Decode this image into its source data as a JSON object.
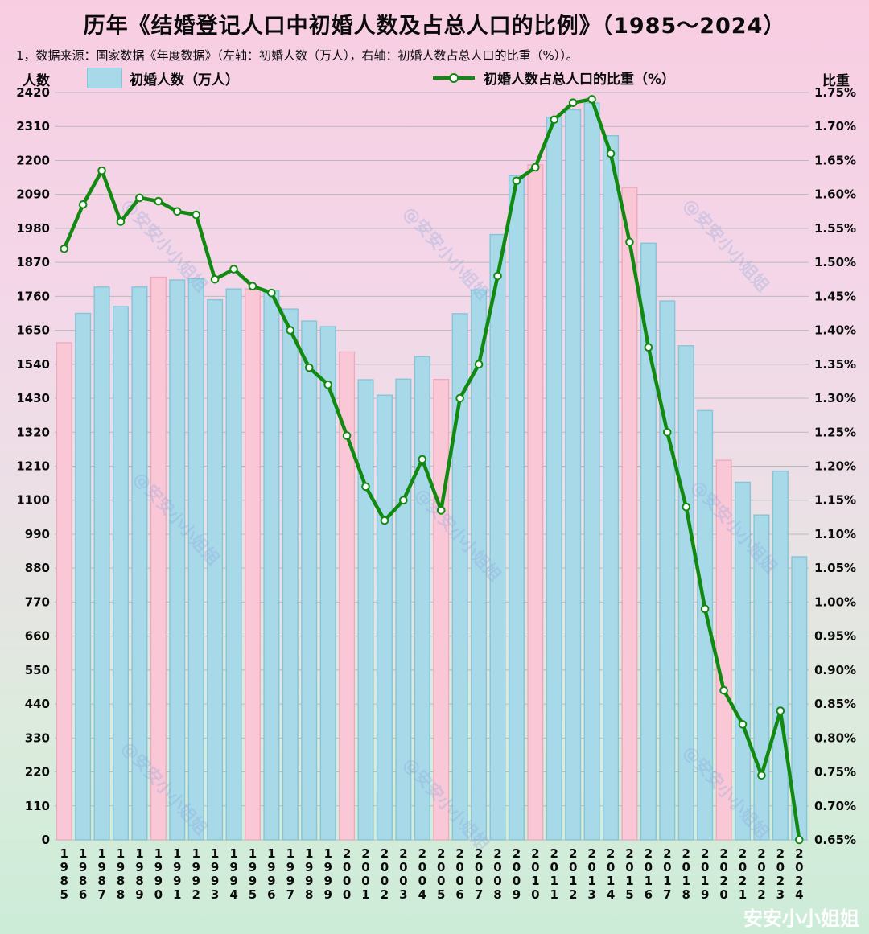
{
  "title": "历年《结婚登记人口中初婚人数及占总人口的比例》（1985～2024）",
  "subtitle": "1，数据来源：国家数据《年度数据》（左轴：初婚人数（万人），右轴：初婚人数占总人口的比重（%））。",
  "axes": {
    "left_title": "人数",
    "right_title": "比重"
  },
  "legend": {
    "bars_label": "初婚人数（万人）",
    "line_label": "初婚人数占总人口的比重（%）"
  },
  "watermark": {
    "corner": "安安小小姐姐",
    "diagonal": "@安安小小姐姐"
  },
  "colors": {
    "bar_blue_fill": "#a7d9e9",
    "bar_blue_stroke": "#86c4d8",
    "bar_pink_fill": "#f9c7d6",
    "bar_pink_stroke": "#edaabf",
    "line_green": "#128a12",
    "grid": "#b9b9bc",
    "watermark_blue": "#8ea6db"
  },
  "chart_data": {
    "type": "combo",
    "categories": [
      "1985",
      "1986",
      "1987",
      "1988",
      "1989",
      "1990",
      "1991",
      "1992",
      "1993",
      "1994",
      "1995",
      "1996",
      "1997",
      "1998",
      "1999",
      "2000",
      "2001",
      "2002",
      "2003",
      "2004",
      "2005",
      "2006",
      "2007",
      "2008",
      "2009",
      "2010",
      "2011",
      "2012",
      "2013",
      "2014",
      "2015",
      "2016",
      "2017",
      "2018",
      "2019",
      "2020",
      "2021",
      "2022",
      "2023",
      "2024"
    ],
    "series": [
      {
        "name": "初婚人数（万人）",
        "chart_type": "bar",
        "axis": "left",
        "values": [
          1610,
          1705,
          1790,
          1727,
          1790,
          1822,
          1813,
          1817,
          1749,
          1784,
          1784,
          1779,
          1719,
          1680,
          1662,
          1580,
          1490,
          1440,
          1492,
          1565,
          1491,
          1704,
          1781,
          1960,
          2151,
          2186,
          2340,
          2364,
          2386,
          2280,
          2112,
          1932,
          1745,
          1600,
          1390,
          1229,
          1158,
          1052,
          1194,
          917
        ]
      },
      {
        "name": "初婚人数占总人口的比重（%）",
        "chart_type": "line",
        "axis": "right",
        "values": [
          1.52,
          1.585,
          1.635,
          1.56,
          1.595,
          1.59,
          1.575,
          1.57,
          1.475,
          1.49,
          1.465,
          1.455,
          1.4,
          1.345,
          1.32,
          1.245,
          1.17,
          1.12,
          1.15,
          1.21,
          1.135,
          1.3,
          1.35,
          1.48,
          1.62,
          1.64,
          1.71,
          1.735,
          1.74,
          1.66,
          1.53,
          1.375,
          1.25,
          1.14,
          0.99,
          0.87,
          0.82,
          0.745,
          0.84,
          0.65
        ]
      }
    ],
    "left_axis": {
      "min": 0,
      "max": 2420,
      "step": 110,
      "ticks": [
        2420,
        2310,
        2200,
        2090,
        1980,
        1870,
        1760,
        1650,
        1540,
        1430,
        1320,
        1210,
        1100,
        990,
        880,
        770,
        660,
        550,
        440,
        330,
        220,
        110,
        0
      ]
    },
    "right_axis": {
      "min": 0.65,
      "max": 1.75,
      "step": 0.05,
      "ticks": [
        "1.75%",
        "1.70%",
        "1.65%",
        "1.60%",
        "1.55%",
        "1.50%",
        "1.45%",
        "1.40%",
        "1.35%",
        "1.30%",
        "1.25%",
        "1.20%",
        "1.15%",
        "1.10%",
        "1.05%",
        "1.00%",
        "0.95%",
        "0.90%",
        "0.85%",
        "0.80%",
        "0.75%",
        "0.70%",
        "0.65%"
      ],
      "grid": true,
      "legend_position": "top"
    },
    "highlight_pink_years": [
      "1985",
      "1990",
      "1995",
      "2000",
      "2005",
      "2010",
      "2015",
      "2020"
    ]
  }
}
